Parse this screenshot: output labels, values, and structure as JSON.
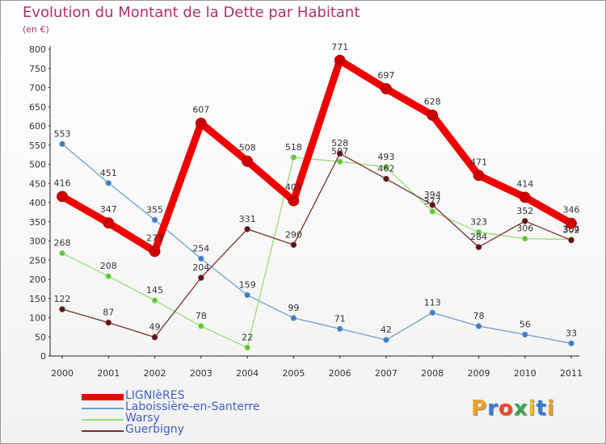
{
  "title": "Evolution du Montant de la Dette par Habitant",
  "subtitle": "(en €)",
  "brand": {
    "text": "Proxiti",
    "letter_colors": [
      "#f0a020",
      "#3a7ad0",
      "#e84a2a",
      "#3aa84a",
      "#e8c020",
      "#3a7ad0",
      "#f0a020"
    ]
  },
  "chart_data": {
    "type": "line",
    "title": "Evolution du Montant de la Dette par Habitant",
    "subtitle": "(en €)",
    "x": [
      "2000",
      "2001",
      "2002",
      "2003",
      "2004",
      "2005",
      "2006",
      "2007",
      "2008",
      "2009",
      "2010",
      "2011"
    ],
    "ylim": [
      0,
      800
    ],
    "yticks": [
      0,
      50,
      100,
      150,
      200,
      250,
      300,
      350,
      400,
      450,
      500,
      550,
      600,
      650,
      700,
      750,
      800
    ],
    "grid": false,
    "legend_position": "bottom-left",
    "series": [
      {
        "name": "LIGNIèRES",
        "color": "#ee0000",
        "marker_color": "#cc0000",
        "emphasis": "thick",
        "values": [
          416,
          347,
          273,
          607,
          508,
          405,
          771,
          697,
          628,
          471,
          414,
          346
        ]
      },
      {
        "name": "Laboissière-en-Santerre",
        "color": "#6fa0d0",
        "marker_color": "#3e7fc1",
        "emphasis": "normal",
        "values": [
          553,
          451,
          355,
          254,
          159,
          99,
          71,
          42,
          113,
          78,
          56,
          33
        ]
      },
      {
        "name": "Warsy",
        "color": "#99dd77",
        "marker_color": "#66c23a",
        "emphasis": "normal",
        "values": [
          268,
          208,
          145,
          78,
          22,
          518,
          507,
          493,
          377,
          323,
          306,
          304
        ]
      },
      {
        "name": "Guerbigny",
        "color": "#7a3030",
        "marker_color": "#5c1414",
        "emphasis": "normal",
        "values": [
          122,
          87,
          49,
          204,
          331,
          290,
          528,
          462,
          394,
          284,
          352,
          302
        ]
      }
    ]
  }
}
